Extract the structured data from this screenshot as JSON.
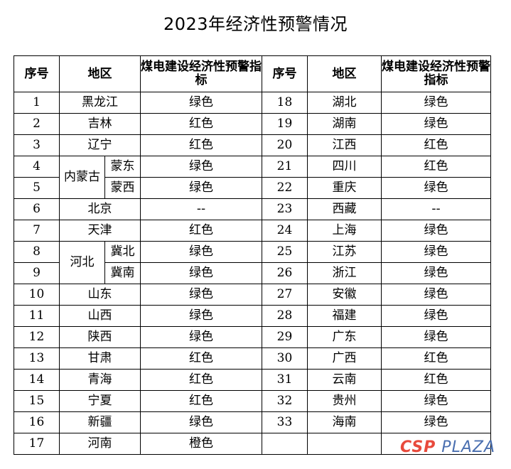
{
  "title": "2023年经济性预警情况",
  "headers": {
    "seq": "序号",
    "region": "地区",
    "indicator": "煤电建设经济性预警指标"
  },
  "left": [
    {
      "no": "1",
      "region": "黑龙江",
      "value": "绿色"
    },
    {
      "no": "2",
      "region": "吉林",
      "value": "红色"
    },
    {
      "no": "3",
      "region": "辽宁",
      "value": "红色"
    },
    {
      "no": "4",
      "group": "内蒙古",
      "region": "蒙东",
      "value": "绿色"
    },
    {
      "no": "5",
      "region": "蒙西",
      "value": "绿色"
    },
    {
      "no": "6",
      "region": "北京",
      "value": "--"
    },
    {
      "no": "7",
      "region": "天津",
      "value": "红色"
    },
    {
      "no": "8",
      "group": "河北",
      "region": "冀北",
      "value": "绿色"
    },
    {
      "no": "9",
      "region": "冀南",
      "value": "绿色"
    },
    {
      "no": "10",
      "region": "山东",
      "value": "绿色"
    },
    {
      "no": "11",
      "region": "山西",
      "value": "绿色"
    },
    {
      "no": "12",
      "region": "陕西",
      "value": "绿色"
    },
    {
      "no": "13",
      "region": "甘肃",
      "value": "红色"
    },
    {
      "no": "14",
      "region": "青海",
      "value": "红色"
    },
    {
      "no": "15",
      "region": "宁夏",
      "value": "红色"
    },
    {
      "no": "16",
      "region": "新疆",
      "value": "绿色"
    },
    {
      "no": "17",
      "region": "河南",
      "value": "橙色"
    }
  ],
  "right": [
    {
      "no": "18",
      "region": "湖北",
      "value": "绿色"
    },
    {
      "no": "19",
      "region": "湖南",
      "value": "绿色"
    },
    {
      "no": "20",
      "region": "江西",
      "value": "红色"
    },
    {
      "no": "21",
      "region": "四川",
      "value": "红色"
    },
    {
      "no": "22",
      "region": "重庆",
      "value": "绿色"
    },
    {
      "no": "23",
      "region": "西藏",
      "value": "--"
    },
    {
      "no": "24",
      "region": "上海",
      "value": "绿色"
    },
    {
      "no": "25",
      "region": "江苏",
      "value": "绿色"
    },
    {
      "no": "26",
      "region": "浙江",
      "value": "绿色"
    },
    {
      "no": "27",
      "region": "安徽",
      "value": "绿色"
    },
    {
      "no": "28",
      "region": "福建",
      "value": "绿色"
    },
    {
      "no": "29",
      "region": "广东",
      "value": "绿色"
    },
    {
      "no": "30",
      "region": "广西",
      "value": "红色"
    },
    {
      "no": "31",
      "region": "云南",
      "value": "红色"
    },
    {
      "no": "32",
      "region": "贵州",
      "value": "绿色"
    },
    {
      "no": "33",
      "region": "海南",
      "value": "绿色"
    }
  ],
  "watermark": {
    "part1": "CSP",
    "part2": "PLAZA"
  }
}
